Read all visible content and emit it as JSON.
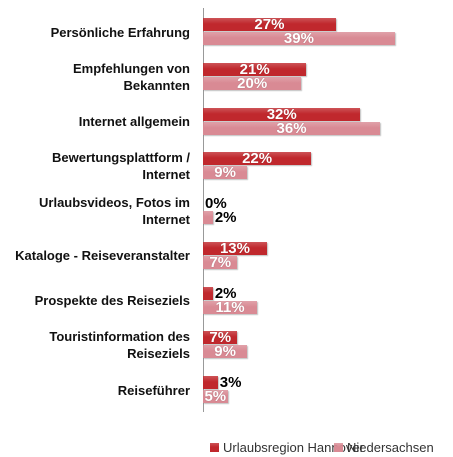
{
  "chart_data": {
    "type": "bar",
    "orientation": "horizontal",
    "categories": [
      "Persönliche Erfahrung",
      "Empfehlungen von Bekannten",
      "Internet allgemein",
      "Bewertungsplattform / Internet",
      "Urlaubsvideos, Fotos im Internet",
      "Kataloge - Reiseveranstalter",
      "Prospekte des Reiseziels",
      "Touristinformation des Reiseziels",
      "Reiseführer"
    ],
    "series": [
      {
        "name": "Urlaubsregion Hannover",
        "color": "#c0282d",
        "values": [
          27,
          21,
          32,
          22,
          0,
          13,
          2,
          7,
          3
        ],
        "value_labels": [
          "27%",
          "21%",
          "32%",
          "22%",
          "0%",
          "13%",
          "2%",
          "7%",
          "3%"
        ]
      },
      {
        "name": "Niedersachsen",
        "color": "#d98a94",
        "values": [
          39,
          20,
          36,
          9,
          2,
          7,
          11,
          9,
          5
        ],
        "value_labels": [
          "39%",
          "20%",
          "36%",
          "9%",
          "2%",
          "7%",
          "11%",
          "9%",
          "5%"
        ]
      }
    ],
    "xlim": [
      0,
      50
    ],
    "legend": "bottom"
  }
}
